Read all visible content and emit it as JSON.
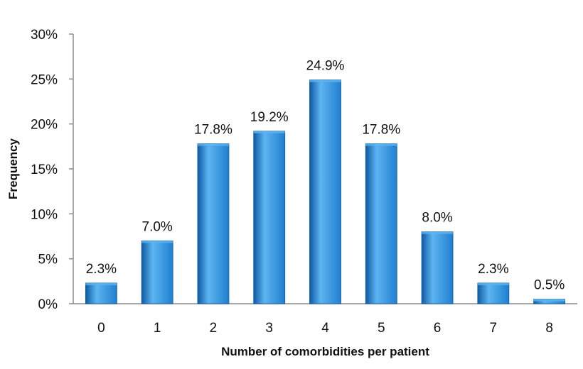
{
  "chart_data": {
    "type": "bar",
    "title": "",
    "xlabel": "Number of comorbidities per patient",
    "ylabel": "Frequency",
    "categories": [
      "0",
      "1",
      "2",
      "3",
      "4",
      "5",
      "6",
      "7",
      "8"
    ],
    "values": [
      2.3,
      7.0,
      17.8,
      19.2,
      24.9,
      17.8,
      8.0,
      2.3,
      0.5
    ],
    "value_labels": [
      "2.3%",
      "7.0%",
      "17.8%",
      "19.2%",
      "24.9%",
      "17.8%",
      "8.0%",
      "2.3%",
      "0.5%"
    ],
    "ylim": [
      0,
      30
    ],
    "yticks": [
      0,
      5,
      10,
      15,
      20,
      25,
      30
    ],
    "ytick_labels": [
      "0%",
      "5%",
      "10%",
      "15%",
      "20%",
      "25%",
      "30%"
    ],
    "grid": false,
    "legend": "none",
    "bar_color": "#1f7fd0",
    "bar_color_dark": "#0d5aa3",
    "bar_color_light": "#5db4f0"
  }
}
